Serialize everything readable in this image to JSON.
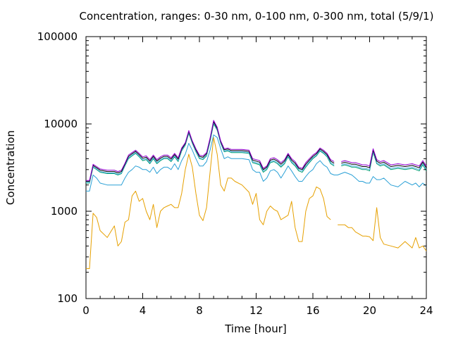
{
  "chart_data": {
    "type": "line",
    "title": "Concentration, ranges: 0-30 nm, 0-100 nm, 0-300 nm, total (5/9/1)",
    "xlabel": "Time [hour]",
    "ylabel": "Concentration",
    "xlim": [
      0,
      24
    ],
    "ylim": [
      100,
      100000
    ],
    "yscale": "log",
    "grid": false,
    "legend": "none",
    "x_ticks": [
      {
        "value": 0,
        "label": "0"
      },
      {
        "value": 4,
        "label": "4"
      },
      {
        "value": 8,
        "label": "8"
      },
      {
        "value": 12,
        "label": "12"
      },
      {
        "value": 16,
        "label": "16"
      },
      {
        "value": 20,
        "label": "20"
      },
      {
        "value": 24,
        "label": "24"
      }
    ],
    "y_ticks": [
      {
        "value": 100,
        "label": "100"
      },
      {
        "value": 1000,
        "label": "1000"
      },
      {
        "value": 10000,
        "label": "10000"
      },
      {
        "value": 100000,
        "label": "100000"
      }
    ],
    "x": [
      0,
      0.25,
      0.5,
      0.75,
      1,
      1.5,
      2,
      2.25,
      2.5,
      2.75,
      3,
      3.25,
      3.5,
      3.75,
      4,
      4.25,
      4.5,
      4.75,
      5,
      5.25,
      5.5,
      5.75,
      6,
      6.25,
      6.5,
      6.75,
      7,
      7.25,
      7.5,
      7.75,
      8,
      8.25,
      8.5,
      8.75,
      9,
      9.25,
      9.5,
      9.75,
      10,
      10.25,
      10.5,
      11,
      11.5,
      11.75,
      12,
      12.25,
      12.5,
      12.75,
      13,
      13.25,
      13.5,
      13.75,
      14,
      14.25,
      14.5,
      14.75,
      15,
      15.25,
      15.5,
      15.75,
      16,
      16.25,
      16.5,
      16.75,
      17,
      17.25,
      17.5,
      17.75,
      18,
      18.25,
      18.5,
      18.75,
      19,
      19.25,
      19.5,
      19.75,
      20,
      20.25,
      20.5,
      20.75,
      21,
      21.5,
      22,
      22.5,
      23,
      23.25,
      23.5,
      23.75,
      24
    ],
    "series": [
      {
        "color": "#e6a000",
        "values": [
          220,
          220,
          950,
          850,
          600,
          500,
          680,
          400,
          450,
          750,
          800,
          1500,
          1700,
          1300,
          1400,
          1000,
          800,
          1200,
          650,
          1000,
          1100,
          1150,
          1200,
          1100,
          1100,
          1600,
          3000,
          4500,
          3200,
          1600,
          900,
          780,
          1100,
          2800,
          7000,
          4500,
          2000,
          1700,
          2400,
          2400,
          2200,
          2000,
          1650,
          1200,
          1600,
          800,
          700,
          1000,
          1150,
          1050,
          1000,
          800,
          850,
          900,
          1300,
          650,
          450,
          450,
          1000,
          1400,
          1500,
          1900,
          1800,
          1400,
          870,
          800,
          null,
          700,
          700,
          700,
          650,
          650,
          580,
          550,
          520,
          520,
          510,
          460,
          1100,
          500,
          420,
          400,
          380,
          450,
          380,
          500,
          380,
          400,
          350
        ]
      },
      {
        "color": "#2aa0d6",
        "values": [
          1700,
          1700,
          2600,
          2400,
          2100,
          2000,
          2000,
          2000,
          2000,
          2400,
          2800,
          3000,
          3300,
          3200,
          3000,
          3000,
          2800,
          3200,
          2700,
          3000,
          3200,
          3200,
          3000,
          3500,
          3000,
          3800,
          4500,
          6000,
          5000,
          4000,
          3300,
          3300,
          3700,
          5000,
          7500,
          7000,
          5200,
          4000,
          4200,
          4000,
          4000,
          4000,
          3900,
          3000,
          2800,
          2800,
          2200,
          2400,
          2900,
          3000,
          2800,
          2400,
          2800,
          3300,
          2900,
          2500,
          2200,
          2200,
          2500,
          2800,
          3000,
          3500,
          3800,
          3400,
          3200,
          2700,
          2600,
          2600,
          2700,
          2800,
          2700,
          2600,
          2400,
          2200,
          2200,
          2100,
          2100,
          2500,
          2300,
          2300,
          2400,
          2000,
          1900,
          2200,
          2000,
          2100,
          1900,
          2100,
          1950
        ]
      },
      {
        "color": "#009e73",
        "values": [
          2100,
          2100,
          3200,
          3000,
          2800,
          2700,
          2700,
          2600,
          2700,
          3300,
          4000,
          4300,
          4600,
          4200,
          3800,
          3900,
          3500,
          4000,
          3500,
          3800,
          4000,
          4000,
          3700,
          4200,
          3700,
          4900,
          5700,
          7800,
          6000,
          4800,
          4000,
          3900,
          4300,
          6300,
          10000,
          8500,
          6000,
          4800,
          4900,
          4700,
          4700,
          4700,
          4600,
          3600,
          3500,
          3400,
          2800,
          3000,
          3600,
          3700,
          3500,
          3200,
          3500,
          4200,
          3600,
          3300,
          2900,
          2800,
          3200,
          3600,
          4000,
          4300,
          4900,
          4600,
          4200,
          3500,
          3300,
          null,
          3300,
          3400,
          3300,
          3200,
          3200,
          3100,
          3000,
          3000,
          2900,
          4700,
          3500,
          3300,
          3400,
          3000,
          3100,
          3000,
          3100,
          3000,
          2900,
          3400,
          2900
        ]
      },
      {
        "color": "#56b4e9",
        "values": [
          2150,
          2150,
          3250,
          3050,
          2850,
          2750,
          2750,
          2650,
          2750,
          3350,
          4100,
          4400,
          4700,
          4300,
          3900,
          4000,
          3600,
          4100,
          3600,
          3900,
          4100,
          4100,
          3800,
          4300,
          3800,
          5000,
          5800,
          8000,
          6100,
          4900,
          4100,
          4000,
          4400,
          6500,
          10300,
          8700,
          6100,
          4900,
          5000,
          4800,
          4800,
          4800,
          4700,
          3700,
          3600,
          3500,
          2900,
          3100,
          3700,
          3800,
          3600,
          3300,
          3600,
          4300,
          3700,
          3400,
          3000,
          2900,
          3300,
          3700,
          4100,
          4400,
          5000,
          4700,
          4300,
          3600,
          3400,
          null,
          3400,
          3500,
          3400,
          3300,
          3300,
          3200,
          3100,
          3100,
          3000,
          4800,
          3600,
          3400,
          3500,
          3100,
          3200,
          3100,
          3200,
          3100,
          3000,
          3500,
          3000
        ]
      },
      {
        "color": "#000000",
        "values": [
          2200,
          2200,
          3350,
          3150,
          2950,
          2850,
          2850,
          2750,
          2850,
          3450,
          4250,
          4550,
          4850,
          4450,
          4050,
          4150,
          3750,
          4250,
          3750,
          4050,
          4250,
          4250,
          3950,
          4450,
          3950,
          5150,
          5950,
          8200,
          6250,
          5050,
          4250,
          4150,
          4550,
          6700,
          10600,
          8900,
          6250,
          5050,
          5150,
          4950,
          4950,
          4950,
          4850,
          3850,
          3750,
          3650,
          3000,
          3200,
          3850,
          3950,
          3750,
          3450,
          3750,
          4450,
          3850,
          3550,
          3100,
          3000,
          3450,
          3850,
          4250,
          4550,
          5150,
          4850,
          4450,
          3750,
          3550,
          null,
          3550,
          3650,
          3550,
          3450,
          3450,
          3350,
          3250,
          3250,
          3150,
          5000,
          3750,
          3550,
          3650,
          3250,
          3350,
          3250,
          3350,
          3250,
          3150,
          3650,
          3150
        ]
      },
      {
        "color": "#9400d3",
        "values": [
          2250,
          2250,
          3450,
          3250,
          3050,
          2950,
          2950,
          2850,
          2950,
          3550,
          4400,
          4700,
          5000,
          4600,
          4200,
          4300,
          3900,
          4400,
          3900,
          4200,
          4400,
          4400,
          4100,
          4600,
          4100,
          5300,
          6100,
          8400,
          6400,
          5200,
          4400,
          4300,
          4700,
          6900,
          11000,
          9200,
          6400,
          5200,
          5300,
          5100,
          5100,
          5100,
          5000,
          4000,
          3900,
          3800,
          3100,
          3300,
          4000,
          4100,
          3900,
          3600,
          3900,
          4600,
          4000,
          3700,
          3200,
          3100,
          3600,
          4000,
          4400,
          4700,
          5300,
          5000,
          4600,
          3900,
          3700,
          null,
          3700,
          3800,
          3700,
          3600,
          3600,
          3500,
          3400,
          3400,
          3300,
          5200,
          3900,
          3700,
          3800,
          3400,
          3500,
          3400,
          3500,
          3400,
          3300,
          3800,
          3300
        ]
      }
    ]
  }
}
